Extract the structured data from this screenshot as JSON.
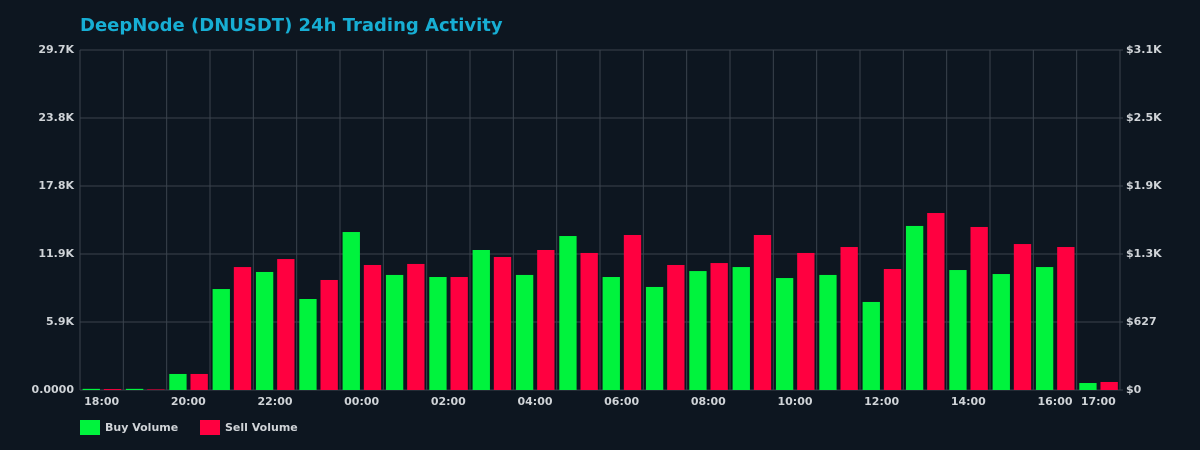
{
  "chart_data": {
    "type": "bar",
    "title": "DeepNode (DNUSDT) 24h Trading Activity",
    "categories": [
      "18:00",
      null,
      "20:00",
      null,
      "22:00",
      null,
      "00:00",
      null,
      "02:00",
      null,
      "04:00",
      null,
      "06:00",
      null,
      "08:00",
      null,
      "10:00",
      null,
      "12:00",
      null,
      "14:00",
      null,
      "16:00",
      "17:00"
    ],
    "series": [
      {
        "name": "Buy Volume",
        "color": "#00f33d",
        "values": [
          100,
          100,
          1400,
          8820,
          10310,
          7950,
          13800,
          10050,
          9870,
          12230,
          10050,
          13450,
          9870,
          9000,
          10390,
          10740,
          9780,
          10050,
          7690,
          14330,
          10480,
          10130,
          10740,
          610
        ]
      },
      {
        "name": "Sell Volume",
        "color": "#ff0040",
        "values": [
          80,
          50,
          1400,
          10740,
          11440,
          9610,
          10920,
          11010,
          9870,
          11620,
          12230,
          11970,
          13540,
          10920,
          11090,
          13540,
          11970,
          12490,
          10570,
          15460,
          14240,
          12750,
          12490,
          700
        ]
      }
    ],
    "ylim": [
      0,
      29700
    ],
    "yticks": [
      {
        "value": 0,
        "label": "0.0000"
      },
      {
        "value": 5940,
        "label": "5.9K"
      },
      {
        "value": 11880,
        "label": "11.9K"
      },
      {
        "value": 17820,
        "label": "17.8K"
      },
      {
        "value": 23760,
        "label": "23.8K"
      },
      {
        "value": 29700,
        "label": "29.7K"
      }
    ],
    "y2lim": [
      0,
      3135
    ],
    "y2ticks": [
      {
        "value": 0,
        "label": "$0"
      },
      {
        "value": 627,
        "label": "$627"
      },
      {
        "value": 1254,
        "label": "$1.3K"
      },
      {
        "value": 1881,
        "label": "$1.9K"
      },
      {
        "value": 2508,
        "label": "$2.5K"
      },
      {
        "value": 3135,
        "label": "$3.1K"
      }
    ],
    "grid": true,
    "legend": "bottom-left"
  }
}
